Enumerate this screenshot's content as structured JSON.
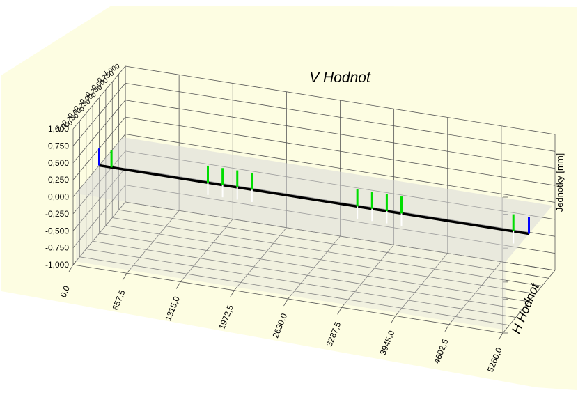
{
  "chart_data": {
    "type": "line",
    "title": "V Hodnot",
    "xlabel": "H Hodnot",
    "ylabel": "Jednotky [mm]",
    "xlim": [
      0,
      5260
    ],
    "ylim": [
      -1,
      1
    ],
    "x_tick_labels": [
      "0,0",
      "657,5",
      "1315,0",
      "1972,5",
      "2630,0",
      "3287,5",
      "3945,0",
      "4602,5",
      "5260,0"
    ],
    "y_tick_labels": [
      "-1,000",
      "-0,750",
      "-0,500",
      "-0,250",
      "0,000",
      "0,250",
      "0,500",
      "0,750",
      "1,000"
    ],
    "side_tick_labels": [
      "-1,000",
      "-0,750",
      "-0,500",
      "-0,250",
      "0,000",
      "0,250",
      "0,500",
      "0,750",
      "1,000"
    ],
    "grid": true,
    "legend": "none",
    "series": [
      {
        "x": [
          0,
          5260
        ],
        "values": [
          0,
          0
        ]
      }
    ],
    "green_markers": [
      {
        "x": 150,
        "up": 0.25,
        "down": 0
      },
      {
        "x": 1330,
        "up": 0.25,
        "down": 0.18
      },
      {
        "x": 1510,
        "up": 0.25,
        "down": 0.18
      },
      {
        "x": 1690,
        "up": 0.25,
        "down": 0.18
      },
      {
        "x": 1870,
        "up": 0.25,
        "down": 0.18
      },
      {
        "x": 3160,
        "up": 0.25,
        "down": 0.18
      },
      {
        "x": 3340,
        "up": 0.25,
        "down": 0.18
      },
      {
        "x": 3520,
        "up": 0.25,
        "down": 0.18
      },
      {
        "x": 3700,
        "up": 0.25,
        "down": 0.18
      },
      {
        "x": 5070,
        "up": 0.25,
        "down": 0.18
      }
    ],
    "blue_markers": [
      {
        "x": 0,
        "up": 0.25
      },
      {
        "x": 5260,
        "up": 0.25
      }
    ],
    "colors": {
      "background": "#fdfde2",
      "grid": "#555555",
      "surface": "#d9d9d9",
      "series_line": "#000000",
      "green_marker": "#00dd00",
      "blue_marker": "#0000ff",
      "white_marker": "#ffffff"
    }
  }
}
